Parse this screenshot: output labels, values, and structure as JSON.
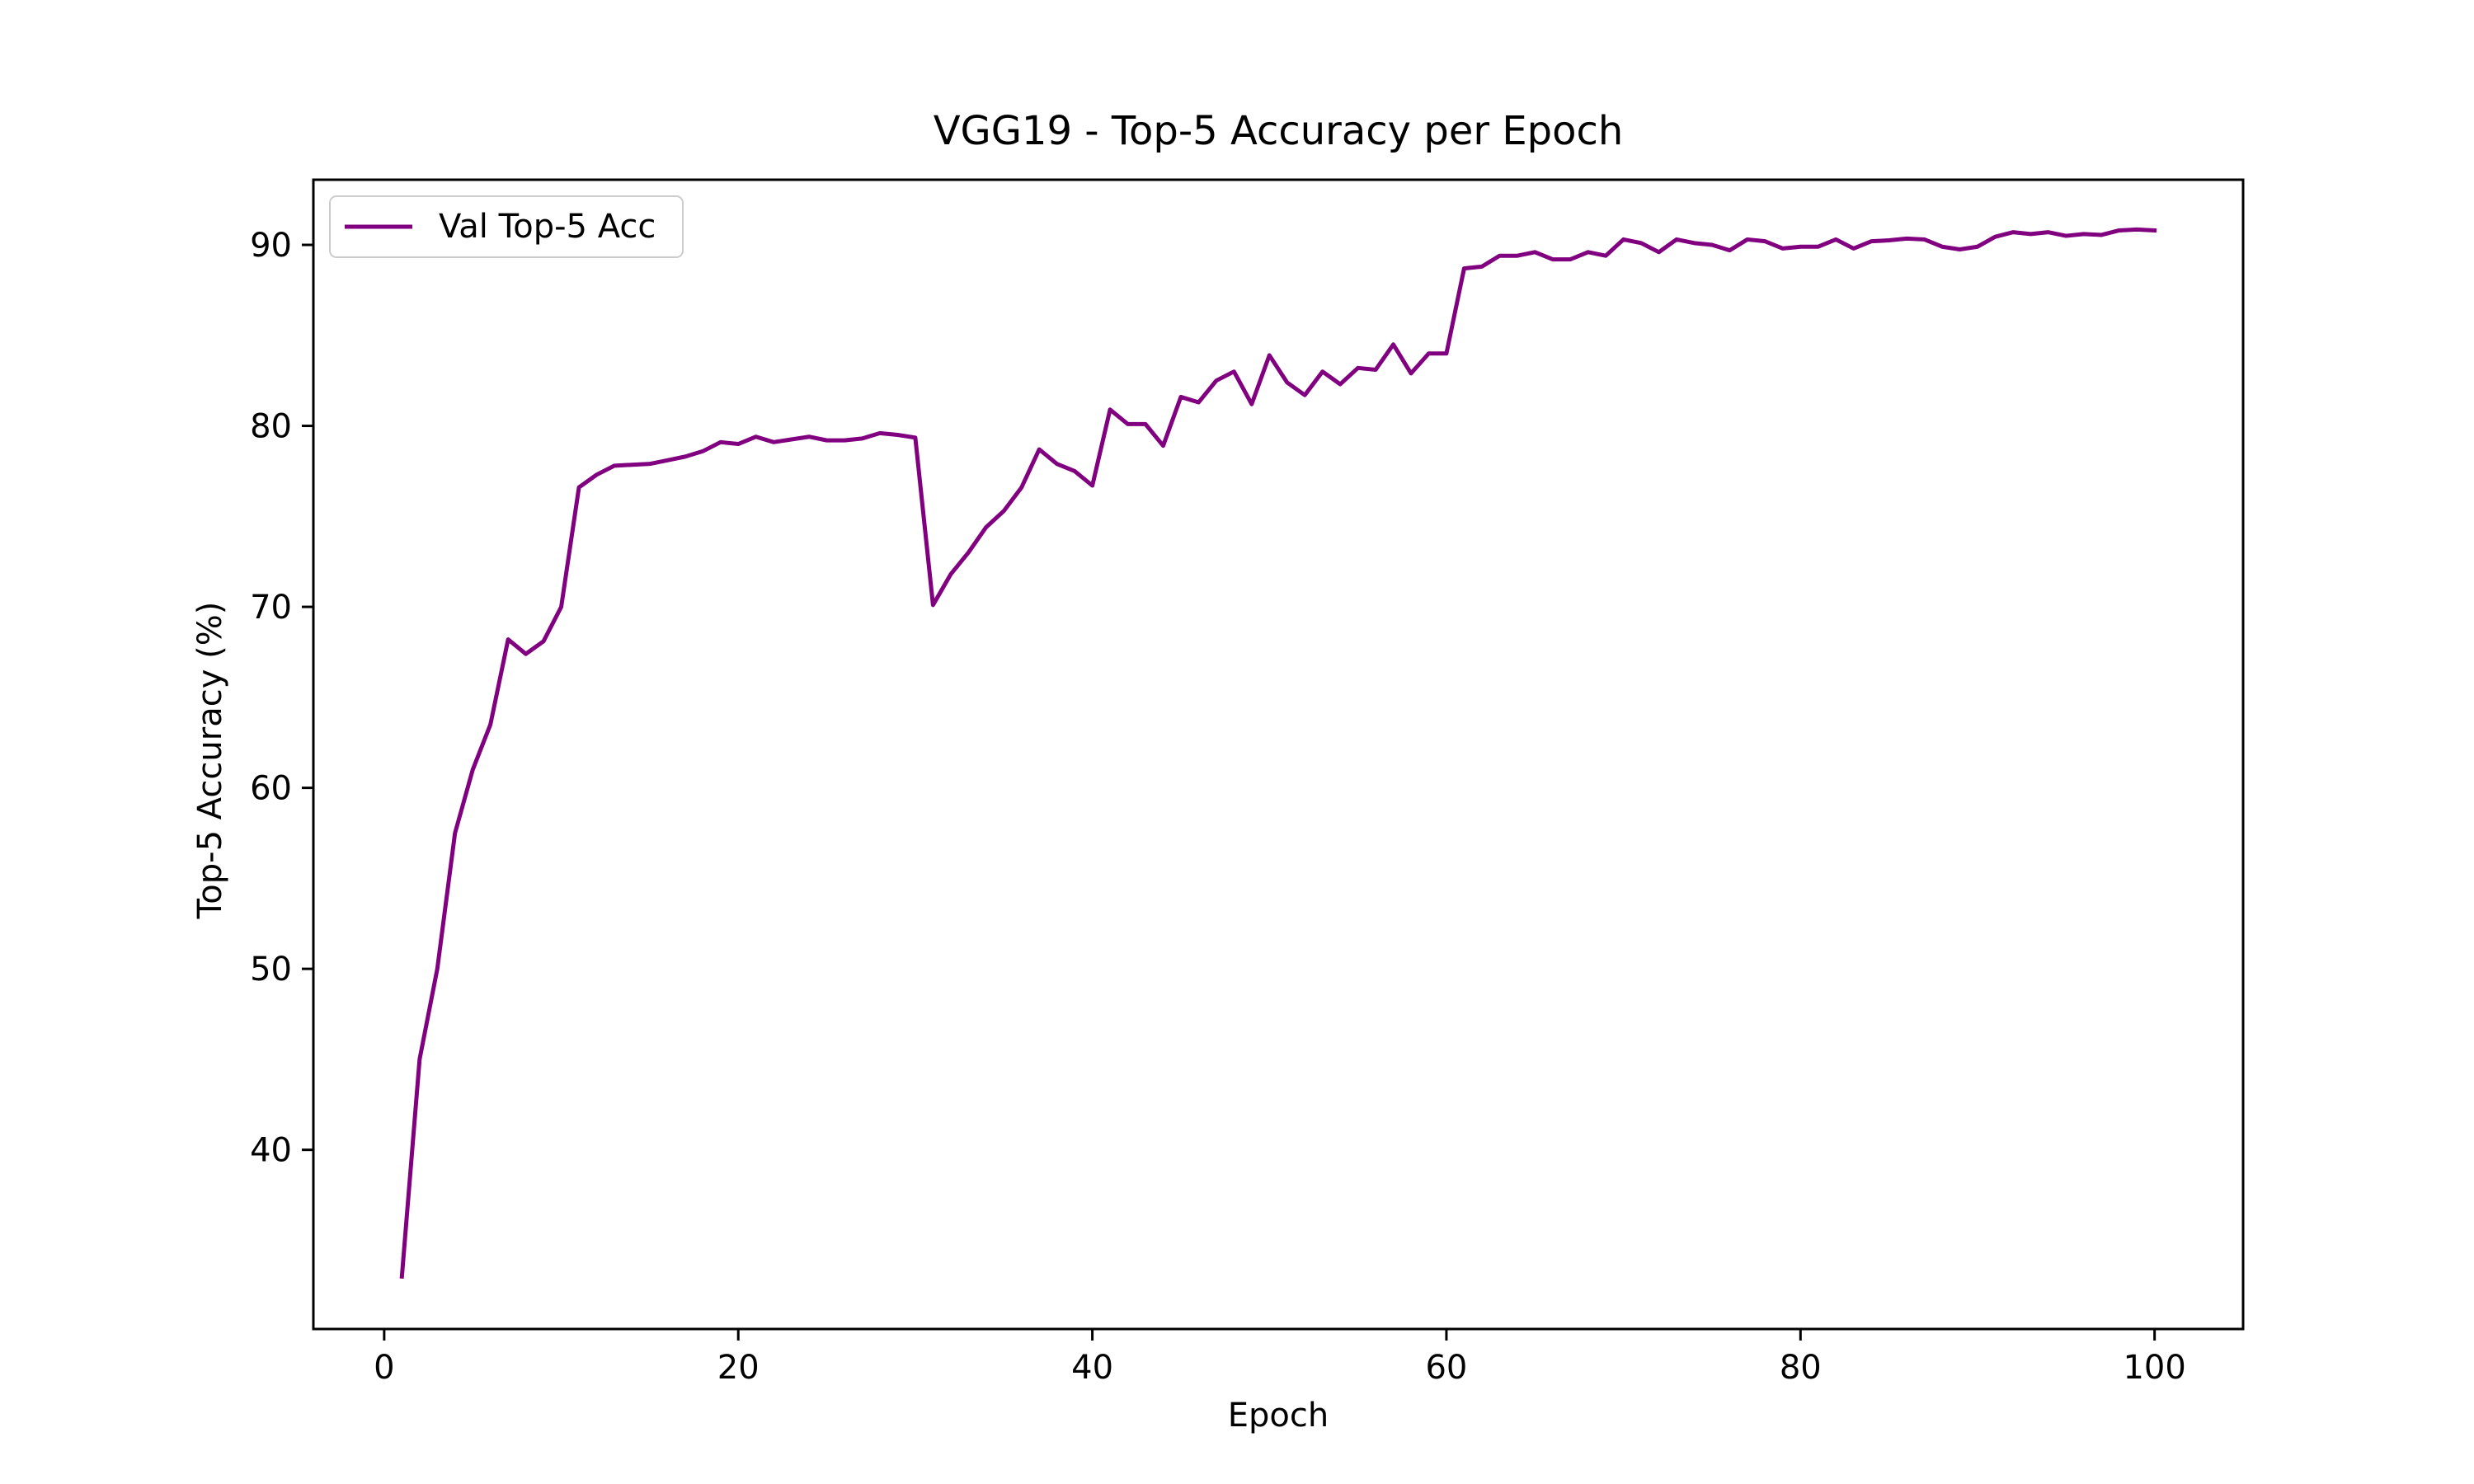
{
  "chart_data": {
    "type": "line",
    "title": "VGG19 - Top-5 Accuracy per Epoch",
    "xlabel": "Epoch",
    "ylabel": "Top-5 Accuracy (%)",
    "xlim": [
      -4,
      105
    ],
    "ylim": [
      30.1,
      93.6
    ],
    "xticks": [
      0,
      20,
      40,
      60,
      80,
      100
    ],
    "yticks": [
      40,
      50,
      60,
      70,
      80,
      90
    ],
    "grid": false,
    "legend_position": "top-left",
    "series": [
      {
        "name": "Val Top-5 Acc",
        "color": "#800080",
        "x": [
          1,
          2,
          3,
          4,
          5,
          6,
          7,
          8,
          9,
          10,
          11,
          12,
          13,
          14,
          15,
          16,
          17,
          18,
          19,
          20,
          21,
          22,
          23,
          24,
          25,
          26,
          27,
          28,
          29,
          30,
          31,
          32,
          33,
          34,
          35,
          36,
          37,
          38,
          39,
          40,
          41,
          42,
          43,
          44,
          45,
          46,
          47,
          48,
          49,
          50,
          51,
          52,
          53,
          54,
          55,
          56,
          57,
          58,
          59,
          60,
          61,
          62,
          63,
          64,
          65,
          66,
          67,
          68,
          69,
          70,
          71,
          72,
          73,
          74,
          75,
          76,
          77,
          78,
          79,
          80,
          81,
          82,
          83,
          84,
          85,
          86,
          87,
          88,
          89,
          90,
          91,
          92,
          93,
          94,
          95,
          96,
          97,
          98,
          99,
          100
        ],
        "values": [
          33.0,
          45.0,
          50.0,
          57.5,
          61.0,
          63.5,
          68.2,
          67.4,
          68.1,
          70.0,
          76.6,
          77.3,
          77.8,
          77.85,
          77.9,
          78.1,
          78.3,
          78.6,
          79.1,
          79.0,
          79.4,
          79.1,
          79.25,
          79.4,
          79.2,
          79.2,
          79.3,
          79.6,
          79.5,
          79.35,
          70.1,
          71.8,
          73.0,
          74.4,
          75.3,
          76.6,
          78.7,
          77.9,
          77.5,
          76.7,
          80.9,
          80.1,
          80.1,
          78.9,
          81.6,
          81.3,
          82.5,
          83.0,
          81.2,
          83.9,
          82.4,
          81.7,
          83.0,
          82.3,
          83.2,
          83.1,
          84.5,
          82.9,
          84.0,
          84.0,
          88.7,
          88.8,
          89.4,
          89.4,
          89.6,
          89.2,
          89.2,
          89.6,
          89.4,
          90.3,
          90.1,
          89.6,
          90.3,
          90.1,
          90.0,
          89.7,
          90.3,
          90.2,
          89.8,
          89.9,
          89.9,
          90.3,
          89.8,
          90.2,
          90.25,
          90.35,
          90.3,
          89.9,
          89.75,
          89.9,
          90.45,
          90.7,
          90.6,
          90.7,
          90.5,
          90.6,
          90.55,
          90.8,
          90.85,
          90.8
        ]
      }
    ]
  }
}
